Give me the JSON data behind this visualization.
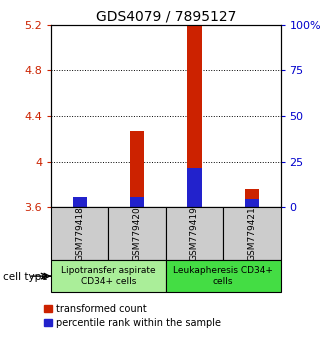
{
  "title": "GDS4079 / 7895127",
  "samples": [
    "GSM779418",
    "GSM779420",
    "GSM779419",
    "GSM779421"
  ],
  "red_tops": [
    3.665,
    4.27,
    5.2,
    3.76
  ],
  "blue_tops": [
    3.685,
    3.685,
    3.945,
    3.675
  ],
  "base": 3.6,
  "ylim_left": [
    3.6,
    5.2
  ],
  "ylim_right": [
    0,
    100
  ],
  "yticks_left": [
    3.6,
    4.0,
    4.4,
    4.8,
    5.2
  ],
  "yticks_right": [
    0,
    25,
    50,
    75,
    100
  ],
  "ytick_labels_left": [
    "3.6",
    "4",
    "4.4",
    "4.8",
    "5.2"
  ],
  "ytick_labels_right": [
    "0",
    "25",
    "50",
    "75",
    "100%"
  ],
  "dotted_lines": [
    4.0,
    4.4,
    4.8
  ],
  "groups": [
    {
      "label": "Lipotransfer aspirate\nCD34+ cells",
      "color": "#aaee99",
      "start": 0,
      "end": 2
    },
    {
      "label": "Leukapheresis CD34+\ncells",
      "color": "#44dd44",
      "start": 2,
      "end": 4
    }
  ],
  "cell_type_label": "cell type",
  "legend_items": [
    {
      "color": "#cc2200",
      "label": "transformed count"
    },
    {
      "color": "#2222cc",
      "label": "percentile rank within the sample"
    }
  ],
  "bar_width": 0.25,
  "red_color": "#cc2200",
  "blue_color": "#2222cc",
  "label_color_left": "#cc2200",
  "label_color_right": "#0000cc",
  "bg_color_plot": "#ffffff",
  "bg_color_sample_boxes": "#cccccc",
  "title_fontsize": 10
}
